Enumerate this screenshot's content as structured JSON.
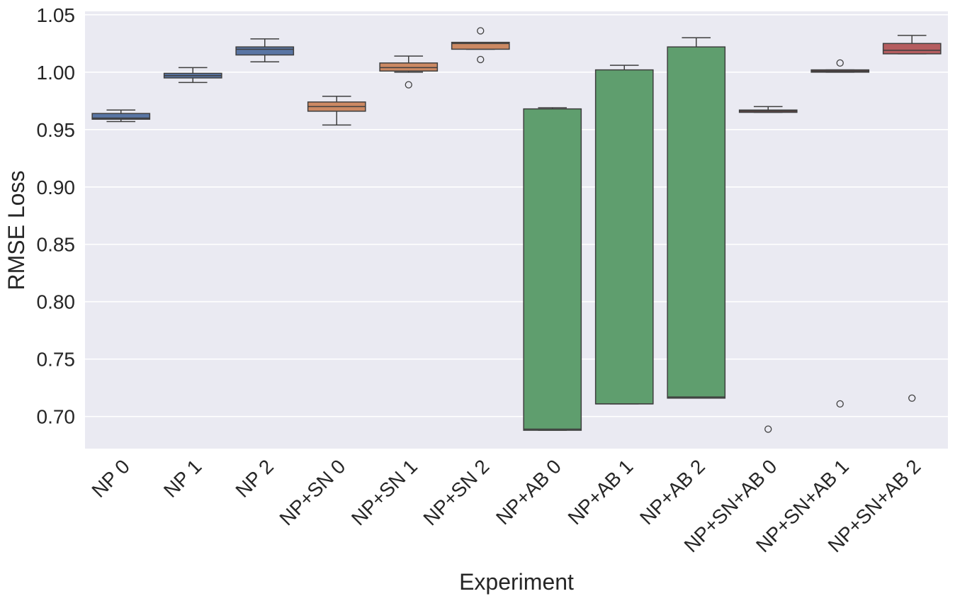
{
  "chart_data": {
    "type": "box",
    "xlabel": "Experiment",
    "ylabel": "RMSE Loss",
    "ylim": [
      0.672,
      1.053
    ],
    "yticks": [
      "0.70",
      "0.75",
      "0.80",
      "0.85",
      "0.90",
      "0.95",
      "1.00",
      "1.05"
    ],
    "grid": true,
    "background": "#eaeaf2",
    "categories": [
      "NP 0",
      "NP 1",
      "NP 2",
      "NP+SN 0",
      "NP+SN 1",
      "NP+SN 2",
      "NP+AB 0",
      "NP+AB 1",
      "NP+AB 2",
      "NP+SN+AB 0",
      "NP+SN+AB 1",
      "NP+SN+AB 2"
    ],
    "colors": [
      "#5975a4",
      "#5975a4",
      "#5975a4",
      "#cc8963",
      "#cc8963",
      "#cc8963",
      "#5f9e6e",
      "#5f9e6e",
      "#5f9e6e",
      "#b55d60",
      "#b55d60",
      "#b55d60"
    ],
    "boxes": [
      {
        "whisker_low": 0.957,
        "q1": 0.959,
        "median": 0.96,
        "q3": 0.964,
        "whisker_high": 0.967,
        "outliers": []
      },
      {
        "whisker_low": 0.991,
        "q1": 0.995,
        "median": 0.997,
        "q3": 0.999,
        "whisker_high": 1.004,
        "outliers": []
      },
      {
        "whisker_low": 1.009,
        "q1": 1.015,
        "median": 1.02,
        "q3": 1.022,
        "whisker_high": 1.029,
        "outliers": []
      },
      {
        "whisker_low": 0.954,
        "q1": 0.966,
        "median": 0.97,
        "q3": 0.974,
        "whisker_high": 0.979,
        "outliers": []
      },
      {
        "whisker_low": 1.0,
        "q1": 1.001,
        "median": 1.004,
        "q3": 1.008,
        "whisker_high": 1.014,
        "outliers": [
          0.989
        ]
      },
      {
        "whisker_low": 1.02,
        "q1": 1.02,
        "median": 1.025,
        "q3": 1.026,
        "whisker_high": 1.026,
        "outliers": [
          1.036,
          1.011
        ]
      },
      {
        "whisker_low": 0.688,
        "q1": 0.688,
        "median": 0.689,
        "q3": 0.968,
        "whisker_high": 0.969,
        "outliers": []
      },
      {
        "whisker_low": 0.711,
        "q1": 0.711,
        "median": 0.711,
        "q3": 1.002,
        "whisker_high": 1.006,
        "outliers": []
      },
      {
        "whisker_low": 0.716,
        "q1": 0.716,
        "median": 0.717,
        "q3": 1.022,
        "whisker_high": 1.03,
        "outliers": []
      },
      {
        "whisker_low": 0.965,
        "q1": 0.965,
        "median": 0.966,
        "q3": 0.967,
        "whisker_high": 0.97,
        "outliers": [
          0.689
        ]
      },
      {
        "whisker_low": 1.0,
        "q1": 1.0,
        "median": 1.001,
        "q3": 1.002,
        "whisker_high": 1.002,
        "outliers": [
          1.008,
          0.711
        ]
      },
      {
        "whisker_low": 1.016,
        "q1": 1.016,
        "median": 1.019,
        "q3": 1.025,
        "whisker_high": 1.032,
        "outliers": [
          0.716
        ]
      }
    ]
  }
}
